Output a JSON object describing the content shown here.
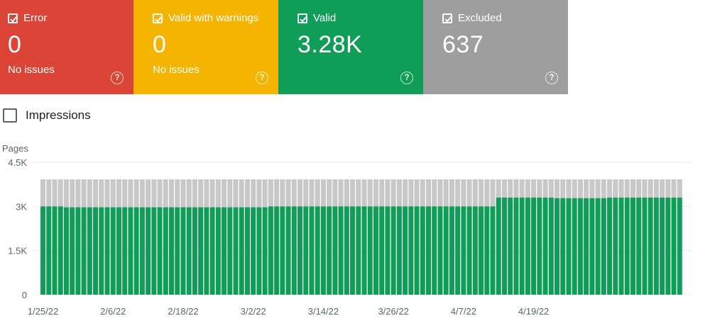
{
  "tiles": [
    {
      "label": "Error",
      "value": "0",
      "sub": "No issues",
      "color": "#db4437"
    },
    {
      "label": "Valid with warnings",
      "value": "0",
      "sub": "No issues",
      "color": "#f4b400"
    },
    {
      "label": "Valid",
      "value": "3.28K",
      "sub": "",
      "color": "#0f9d58"
    },
    {
      "label": "Excluded",
      "value": "637",
      "sub": "",
      "color": "#9e9e9e"
    }
  ],
  "impressions": {
    "label": "Impressions",
    "checked": false
  },
  "help_icon_glyph": "?",
  "chart_data": {
    "type": "bar",
    "stacked": true,
    "ylabel": "Pages",
    "yticks": [
      "0",
      "1.5K",
      "3K",
      "4.5K"
    ],
    "ylim": [
      0,
      4500
    ],
    "xticks": [
      "1/25/22",
      "2/6/22",
      "2/18/22",
      "3/2/22",
      "3/14/22",
      "3/26/22",
      "4/7/22",
      "4/19/22"
    ],
    "colors": {
      "valid": "#0f9d58",
      "excluded": "#c8c8c8"
    },
    "series": [
      {
        "name": "Valid",
        "values": [
          3000,
          3000,
          3000,
          3000,
          2970,
          2970,
          2970,
          2970,
          2970,
          2970,
          2970,
          2970,
          2970,
          2970,
          2970,
          2970,
          2970,
          2970,
          2970,
          2970,
          2970,
          2970,
          2970,
          2970,
          2970,
          2970,
          2970,
          2970,
          2970,
          2970,
          2970,
          2970,
          2970,
          2970,
          2970,
          2970,
          2970,
          2970,
          2970,
          3000,
          3000,
          3000,
          3000,
          3000,
          3000,
          3000,
          3000,
          3000,
          3000,
          3000,
          3000,
          3000,
          3000,
          3000,
          3000,
          3000,
          3000,
          3000,
          3000,
          3000,
          3000,
          3000,
          3000,
          3000,
          3000,
          3000,
          3000,
          3000,
          3000,
          3000,
          3000,
          3000,
          3000,
          3000,
          3000,
          3000,
          3000,
          3000,
          3300,
          3300,
          3300,
          3300,
          3300,
          3300,
          3300,
          3300,
          3300,
          3300,
          3280,
          3280,
          3280,
          3280,
          3280,
          3280,
          3280,
          3280,
          3280,
          3300,
          3300,
          3300,
          3300,
          3300,
          3300,
          3300,
          3300,
          3300,
          3300,
          3300,
          3300,
          3300
        ]
      },
      {
        "name": "Excluded",
        "values": [
          920,
          920,
          920,
          920,
          950,
          950,
          950,
          950,
          950,
          950,
          950,
          950,
          950,
          950,
          950,
          950,
          950,
          950,
          950,
          950,
          950,
          950,
          950,
          950,
          950,
          950,
          950,
          950,
          950,
          950,
          950,
          950,
          950,
          950,
          950,
          950,
          950,
          950,
          950,
          920,
          920,
          920,
          920,
          920,
          920,
          920,
          920,
          920,
          920,
          920,
          920,
          920,
          920,
          920,
          920,
          920,
          920,
          920,
          920,
          920,
          920,
          920,
          920,
          920,
          920,
          920,
          920,
          920,
          920,
          920,
          920,
          920,
          920,
          920,
          920,
          920,
          920,
          920,
          620,
          620,
          620,
          620,
          620,
          620,
          620,
          620,
          620,
          620,
          640,
          640,
          640,
          640,
          640,
          640,
          640,
          640,
          640,
          620,
          620,
          620,
          620,
          620,
          620,
          620,
          620,
          620,
          620,
          620,
          620,
          620
        ]
      }
    ]
  }
}
